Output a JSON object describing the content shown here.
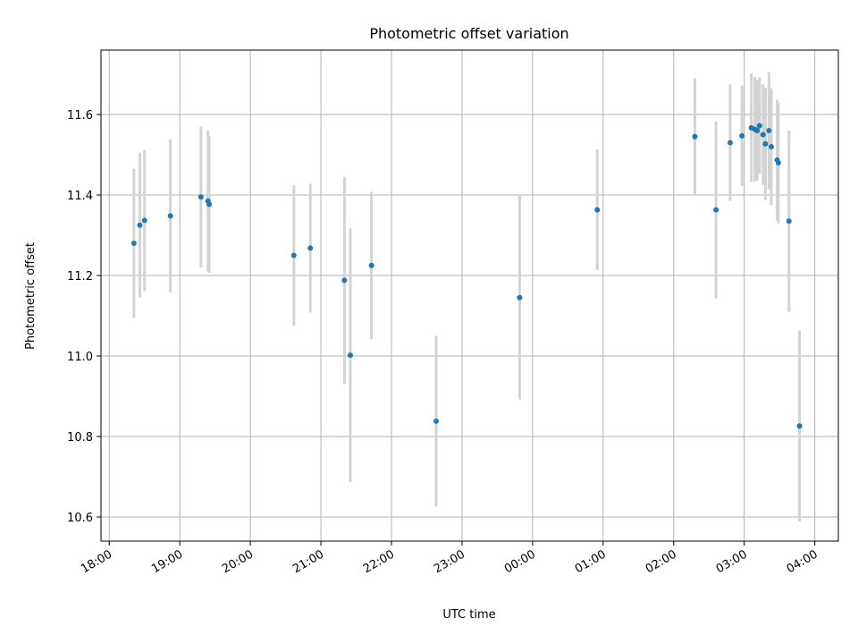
{
  "chart_data": {
    "type": "scatter",
    "title": "Photometric offset variation",
    "xlabel": "UTC time",
    "ylabel": "Photometric offset",
    "grid": true,
    "xlim": [
      "17:53",
      "04:20"
    ],
    "ylim": [
      10.54,
      11.76
    ],
    "x_ticks": [
      "18:00",
      "19:00",
      "20:00",
      "21:00",
      "22:00",
      "23:00",
      "00:00",
      "01:00",
      "02:00",
      "03:00",
      "04:00"
    ],
    "y_ticks": [
      10.6,
      10.8,
      11.0,
      11.2,
      11.4,
      11.6
    ],
    "y_tick_labels": [
      "10.6",
      "10.8",
      "11.0",
      "11.2",
      "11.4",
      "11.6"
    ],
    "marker_color": "#1f77b4",
    "errorbar_color": "#d3d3d3",
    "points": [
      {
        "t": "18:21",
        "y": 11.28,
        "err": 0.185
      },
      {
        "t": "18:26",
        "y": 11.325,
        "err": 0.18
      },
      {
        "t": "18:30",
        "y": 11.337,
        "err": 0.175
      },
      {
        "t": "18:52",
        "y": 11.348,
        "err": 0.19
      },
      {
        "t": "19:18",
        "y": 11.395,
        "err": 0.175
      },
      {
        "t": "19:24",
        "y": 11.385,
        "err": 0.175
      },
      {
        "t": "19:25",
        "y": 11.377,
        "err": 0.17
      },
      {
        "t": "20:37",
        "y": 11.25,
        "err": 0.175
      },
      {
        "t": "20:51",
        "y": 11.268,
        "err": 0.16
      },
      {
        "t": "21:20",
        "y": 11.188,
        "err": 0.257
      },
      {
        "t": "21:25",
        "y": 11.002,
        "err": 0.315
      },
      {
        "t": "21:43",
        "y": 11.225,
        "err": 0.183
      },
      {
        "t": "22:38",
        "y": 10.838,
        "err": 0.212
      },
      {
        "t": "23:49",
        "y": 11.145,
        "err": 0.253
      },
      {
        "t": "00:55",
        "y": 11.363,
        "err": 0.15
      },
      {
        "t": "02:18",
        "y": 11.545,
        "err": 0.145
      },
      {
        "t": "02:36",
        "y": 11.363,
        "err": 0.22
      },
      {
        "t": "02:48",
        "y": 11.53,
        "err": 0.145
      },
      {
        "t": "02:58",
        "y": 11.547,
        "err": 0.125
      },
      {
        "t": "03:06",
        "y": 11.567,
        "err": 0.135
      },
      {
        "t": "03:09",
        "y": 11.563,
        "err": 0.13
      },
      {
        "t": "03:11",
        "y": 11.56,
        "err": 0.125
      },
      {
        "t": "03:13",
        "y": 11.572,
        "err": 0.12
      },
      {
        "t": "03:16",
        "y": 11.55,
        "err": 0.125
      },
      {
        "t": "03:18",
        "y": 11.527,
        "err": 0.14
      },
      {
        "t": "03:21",
        "y": 11.56,
        "err": 0.145
      },
      {
        "t": "03:23",
        "y": 11.52,
        "err": 0.145
      },
      {
        "t": "03:28",
        "y": 11.487,
        "err": 0.15
      },
      {
        "t": "03:29",
        "y": 11.48,
        "err": 0.15
      },
      {
        "t": "03:38",
        "y": 11.335,
        "err": 0.225
      },
      {
        "t": "03:47",
        "y": 10.826,
        "err": 0.237
      }
    ]
  }
}
